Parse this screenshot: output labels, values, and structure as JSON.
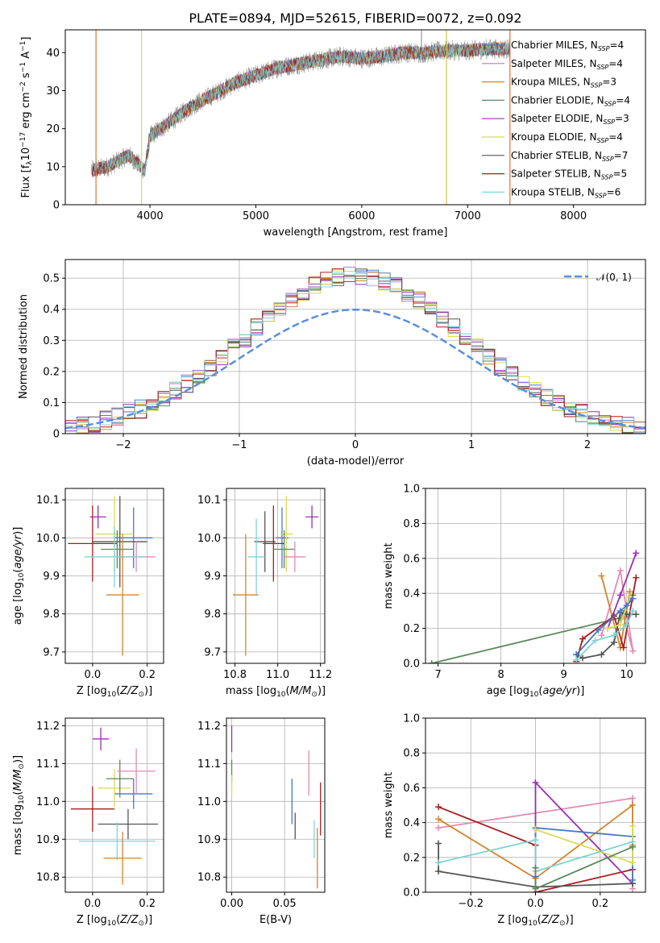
{
  "chart_data": [
    {
      "id": "spectrum",
      "type": "line",
      "title": "PLATE=0894, MJD=52615, FIBERID=0072, z=0.092",
      "xlabel": "wavelength [Angstrom, rest frame]",
      "ylabel": "Flux [f_λ 10^-17 erg cm^-2 s^-1 A^-1]",
      "xlim": [
        3200,
        8680
      ],
      "ylim": [
        0,
        46
      ],
      "xticks": [
        4000,
        5000,
        6000,
        7000,
        8000
      ],
      "yticks": [
        0,
        10,
        20,
        30,
        40
      ],
      "grid": false,
      "legend_position": "top-right",
      "continuum": {
        "x": [
          3450,
          3600,
          3800,
          3950,
          4000,
          4200,
          4400,
          4600,
          4800,
          5000,
          5200,
          5400,
          5600,
          5800,
          6000,
          6200,
          6400,
          6600,
          6800,
          7000,
          7200,
          7400
        ],
        "y": [
          9,
          10,
          13,
          9,
          18,
          22,
          26,
          29,
          32,
          34,
          36,
          37,
          38,
          39,
          38.5,
          39,
          40,
          40,
          40.5,
          40.5,
          41,
          41
        ]
      },
      "series": [
        {
          "name": "Chabrier MILES, N_SSP=4",
          "color": "#4a78c4"
        },
        {
          "name": "Salpeter MILES, N_SSP=4",
          "color": "#b178d6"
        },
        {
          "name": "Kroupa MILES, N_SSP=3",
          "color": "#d2862a"
        },
        {
          "name": "Chabrier ELODIE, N_SSP=4",
          "color": "#5a8a5a"
        },
        {
          "name": "Salpeter ELODIE, N_SSP=3",
          "color": "#9b2fb5"
        },
        {
          "name": "Kroupa ELODIE, N_SSP=4",
          "color": "#dada55"
        },
        {
          "name": "Chabrier STELIB, N_SSP=7",
          "color": "#555555"
        },
        {
          "name": "Salpeter STELIB, N_SSP=5",
          "color": "#a81c1c"
        },
        {
          "name": "Kroupa STELIB, N_SSP=6",
          "color": "#7fd4d4"
        }
      ],
      "annotations": {
        "data_line_color": "#999999",
        "cutoff_lines": [
          {
            "x": 3490,
            "color": "#e07030"
          },
          {
            "x": 3920,
            "color": "#dada55"
          },
          {
            "x": 6800,
            "color": "#c8c840"
          },
          {
            "x": 7400,
            "color": "#e07030"
          }
        ]
      }
    },
    {
      "id": "residuals",
      "type": "line",
      "xlabel": "(data-model)/error",
      "ylabel": "Normed distribution",
      "xlim": [
        -2.5,
        2.5
      ],
      "ylim": [
        0,
        0.56
      ],
      "xticks": [
        -2,
        -1,
        0,
        1,
        2
      ],
      "yticks": [
        0,
        0.1,
        0.2,
        0.3,
        0.4,
        0.5
      ],
      "grid": true,
      "legend": [
        {
          "name": "𝒩(0, 1)",
          "color": "#5b8fd9",
          "dash": true
        }
      ],
      "legend_position": "top-right"
    },
    {
      "id": "z-age",
      "type": "scatter",
      "xlabel": "Z [log10(Z/Z⊙)]",
      "ylabel": "age [log10(age/yr)]",
      "xlim": [
        -0.1,
        0.26
      ],
      "ylim": [
        9.67,
        10.13
      ],
      "xticks": [
        0.0,
        0.2
      ],
      "xtick_labels": [
        "0.0",
        "0.2"
      ],
      "yticks": [
        9.7,
        9.8,
        9.9,
        10.0,
        10.1
      ],
      "grid": true,
      "points": [
        {
          "x": 0.02,
          "y": 10.055,
          "xerr": 0.03,
          "yerr": 0.03,
          "color": "#9b2fb5"
        },
        {
          "x": 0.15,
          "y": 10.0,
          "xerr": 0.07,
          "yerr": 0.08,
          "color": "#4a78c4"
        },
        {
          "x": 0.08,
          "y": 10.01,
          "xerr": 0.07,
          "yerr": 0.1,
          "color": "#dada55"
        },
        {
          "x": 0.1,
          "y": 9.99,
          "xerr": 0.1,
          "yerr": 0.12,
          "color": "#555555"
        },
        {
          "x": 0.0,
          "y": 9.985,
          "xerr": 0.09,
          "yerr": 0.1,
          "color": "#a81c1c"
        },
        {
          "x": 0.09,
          "y": 9.97,
          "xerr": 0.06,
          "yerr": 0.05,
          "color": "#5a8a5a"
        },
        {
          "x": 0.16,
          "y": 9.95,
          "xerr": 0.07,
          "yerr": 0.04,
          "color": "#e48ab0"
        },
        {
          "x": 0.08,
          "y": 9.95,
          "xerr": 0.11,
          "yerr": 0.08,
          "color": "#7fd4d4"
        },
        {
          "x": 0.11,
          "y": 9.85,
          "xerr": 0.06,
          "yerr": 0.16,
          "color": "#d2862a"
        }
      ]
    },
    {
      "id": "mass-age",
      "type": "scatter",
      "xlabel": "mass [log10(M/M⊙)]",
      "xlim": [
        10.76,
        11.22
      ],
      "ylim": [
        9.67,
        10.13
      ],
      "xticks": [
        10.8,
        11.0,
        11.2
      ],
      "xtick_labels": [
        "10.8",
        "11.0",
        "11.2"
      ],
      "yticks": [
        9.7,
        9.8,
        9.9,
        10.0,
        10.1
      ],
      "grid": true,
      "points": [
        {
          "x": 11.16,
          "y": 10.055,
          "xerr": 0.03,
          "yerr": 0.03,
          "color": "#9b2fb5"
        },
        {
          "x": 11.02,
          "y": 10.0,
          "xerr": 0.03,
          "yerr": 0.08,
          "color": "#4a78c4"
        },
        {
          "x": 11.04,
          "y": 10.01,
          "xerr": 0.03,
          "yerr": 0.1,
          "color": "#dada55"
        },
        {
          "x": 10.94,
          "y": 9.99,
          "xerr": 0.05,
          "yerr": 0.08,
          "color": "#555555"
        },
        {
          "x": 10.98,
          "y": 9.985,
          "xerr": 0.05,
          "yerr": 0.1,
          "color": "#a81c1c"
        },
        {
          "x": 11.03,
          "y": 9.97,
          "xerr": 0.05,
          "yerr": 0.05,
          "color": "#5a8a5a"
        },
        {
          "x": 11.08,
          "y": 9.95,
          "xerr": 0.05,
          "yerr": 0.04,
          "color": "#e48ab0"
        },
        {
          "x": 10.9,
          "y": 9.95,
          "xerr": 0.04,
          "yerr": 0.1,
          "color": "#7fd4d4"
        },
        {
          "x": 10.85,
          "y": 9.85,
          "xerr": 0.06,
          "yerr": 0.16,
          "color": "#d2862a"
        }
      ]
    },
    {
      "id": "age-weight",
      "type": "line",
      "xlabel": "age [log10(age/yr)]",
      "ylabel": "mass weight",
      "xlim": [
        6.8,
        10.3
      ],
      "ylim": [
        0,
        1.0
      ],
      "xticks": [
        7,
        8,
        9,
        10
      ],
      "yticks": [
        0.0,
        0.2,
        0.4,
        0.6,
        0.8,
        1.0
      ],
      "grid": true,
      "series": [
        {
          "color": "#5a8a5a",
          "x": [
            6.9,
            9.9,
            10.1
          ],
          "y": [
            0.0,
            0.26,
            0.39
          ]
        },
        {
          "color": "#e48ab0",
          "x": [
            9.6,
            9.9,
            10.1,
            9.95
          ],
          "y": [
            0.16,
            0.53,
            0.07,
            0.27
          ]
        },
        {
          "color": "#d2862a",
          "x": [
            9.6,
            9.9,
            10.05
          ],
          "y": [
            0.5,
            0.09,
            0.41
          ]
        },
        {
          "color": "#9b2fb5",
          "x": [
            9.7,
            9.9,
            10.15
          ],
          "y": [
            0.2,
            0.39,
            0.63
          ]
        },
        {
          "color": "#a81c1c",
          "x": [
            9.2,
            9.3,
            9.8,
            9.95,
            10.15
          ],
          "y": [
            0.01,
            0.14,
            0.27,
            0.09,
            0.49
          ]
        },
        {
          "color": "#555555",
          "x": [
            9.2,
            9.3,
            9.6,
            9.8,
            9.9,
            10.0,
            10.15
          ],
          "y": [
            0.05,
            0.03,
            0.05,
            0.12,
            0.29,
            0.28,
            0.28
          ]
        },
        {
          "color": "#dada55",
          "x": [
            9.7,
            9.9,
            10.05
          ],
          "y": [
            0.2,
            0.22,
            0.38
          ]
        },
        {
          "color": "#4a78c4",
          "x": [
            9.2,
            9.55,
            9.9,
            10.0,
            10.1
          ],
          "y": [
            0.05,
            0.19,
            0.3,
            0.33,
            0.37
          ]
        },
        {
          "color": "#7fd4d4",
          "x": [
            9.2,
            9.5,
            9.8,
            10.0,
            10.1
          ],
          "y": [
            0.02,
            0.13,
            0.16,
            0.22,
            0.3
          ]
        }
      ]
    },
    {
      "id": "z-mass",
      "type": "scatter",
      "xlabel": "Z [log10(Z/Z⊙)]",
      "ylabel": "mass [log10(M/M⊙)]",
      "xlim": [
        -0.1,
        0.26
      ],
      "ylim": [
        10.76,
        11.22
      ],
      "xticks": [
        0.0,
        0.2
      ],
      "xtick_labels": [
        "0.0",
        "0.2"
      ],
      "yticks": [
        10.8,
        10.9,
        11.0,
        11.1,
        11.2
      ],
      "grid": true,
      "points": [
        {
          "x": 0.03,
          "y": 11.165,
          "xerr": 0.03,
          "yerr": 0.03,
          "color": "#9b2fb5"
        },
        {
          "x": 0.15,
          "y": 11.02,
          "xerr": 0.07,
          "yerr": 0.04,
          "color": "#4a78c4"
        },
        {
          "x": 0.08,
          "y": 11.035,
          "xerr": 0.06,
          "yerr": 0.05,
          "color": "#dada55"
        },
        {
          "x": 0.13,
          "y": 10.94,
          "xerr": 0.11,
          "yerr": 0.04,
          "color": "#555555"
        },
        {
          "x": 0.0,
          "y": 10.98,
          "xerr": 0.08,
          "yerr": 0.06,
          "color": "#a81c1c"
        },
        {
          "x": 0.1,
          "y": 11.06,
          "xerr": 0.05,
          "yerr": 0.05,
          "color": "#5a8a5a"
        },
        {
          "x": 0.16,
          "y": 11.08,
          "xerr": 0.07,
          "yerr": 0.06,
          "color": "#e48ab0"
        },
        {
          "x": 0.09,
          "y": 10.895,
          "xerr": 0.14,
          "yerr": 0.05,
          "color": "#7fd4d4"
        },
        {
          "x": 0.11,
          "y": 10.85,
          "xerr": 0.07,
          "yerr": 0.07,
          "color": "#d2862a"
        }
      ]
    },
    {
      "id": "ebv-mass",
      "type": "scatter",
      "xlabel": "E(B-V)",
      "xlim": [
        -0.005,
        0.088
      ],
      "ylim": [
        10.76,
        11.22
      ],
      "xticks": [
        0.0,
        0.05
      ],
      "xtick_labels": [
        "0.00",
        "0.05"
      ],
      "yticks": [
        10.8,
        10.9,
        11.0,
        11.1,
        11.2
      ],
      "grid": true,
      "points": [
        {
          "x": 0.0,
          "y": 11.165,
          "yerr": 0.035,
          "color": "#9b2fb5"
        },
        {
          "x": 0.0,
          "y": 11.08,
          "yerr": 0.03,
          "color": "#5a8a5a"
        },
        {
          "x": 0.0,
          "y": 11.04,
          "yerr": 0.03,
          "color": "#dada55"
        },
        {
          "x": 0.057,
          "y": 11.0,
          "yerr": 0.06,
          "color": "#4a78c4"
        },
        {
          "x": 0.06,
          "y": 10.935,
          "yerr": 0.035,
          "color": "#555555"
        },
        {
          "x": 0.073,
          "y": 11.075,
          "yerr": 0.06,
          "color": "#e48ab0"
        },
        {
          "x": 0.078,
          "y": 10.9,
          "yerr": 0.05,
          "color": "#7fd4d4"
        },
        {
          "x": 0.081,
          "y": 10.85,
          "yerr": 0.08,
          "color": "#d2862a"
        },
        {
          "x": 0.084,
          "y": 10.98,
          "yerr": 0.07,
          "color": "#a81c1c"
        }
      ]
    },
    {
      "id": "z-weight",
      "type": "line",
      "xlabel": "Z [log10(Z/Z⊙)]",
      "ylabel": "mass weight",
      "xlim": [
        -0.34,
        0.34
      ],
      "ylim": [
        0,
        1.0
      ],
      "xticks": [
        -0.2,
        0.0,
        0.2
      ],
      "xtick_labels": [
        "−0.2",
        "0.0",
        "0.2"
      ],
      "yticks": [
        0.0,
        0.2,
        0.4,
        0.6,
        0.8,
        1.0
      ],
      "grid": true,
      "series": [
        {
          "color": "#e48ab0",
          "x": [
            -0.3,
            0.3,
            0.3
          ],
          "y": [
            0.37,
            0.54,
            0.02
          ]
        },
        {
          "color": "#a81c1c",
          "x": [
            -0.3,
            0.0,
            0.0,
            0.3
          ],
          "y": [
            0.49,
            0.27,
            0.0,
            0.13
          ]
        },
        {
          "color": "#9b2fb5",
          "x": [
            0.0,
            0.0,
            0.3
          ],
          "y": [
            0.0,
            0.63,
            0.05
          ]
        },
        {
          "color": "#d2862a",
          "x": [
            -0.3,
            0.0,
            0.3,
            0.3
          ],
          "y": [
            0.42,
            0.08,
            0.5,
            0.27
          ]
        },
        {
          "color": "#555555",
          "x": [
            -0.3,
            -0.3,
            0.0,
            0.3
          ],
          "y": [
            0.28,
            0.12,
            0.03,
            0.05
          ]
        },
        {
          "color": "#4a78c4",
          "x": [
            0.0,
            0.0,
            0.3,
            0.3
          ],
          "y": [
            0.09,
            0.37,
            0.32,
            0.07
          ]
        },
        {
          "color": "#dada55",
          "x": [
            0.0,
            0.3,
            0.3
          ],
          "y": [
            0.36,
            0.17,
            0.38
          ]
        },
        {
          "color": "#7fd4d4",
          "x": [
            -0.3,
            0.0,
            0.0,
            0.3
          ],
          "y": [
            0.17,
            0.3,
            0.12,
            0.29
          ]
        },
        {
          "color": "#5a8a5a",
          "x": [
            0.0,
            0.0,
            0.3
          ],
          "y": [
            0.14,
            0.02,
            0.26
          ]
        }
      ]
    }
  ]
}
